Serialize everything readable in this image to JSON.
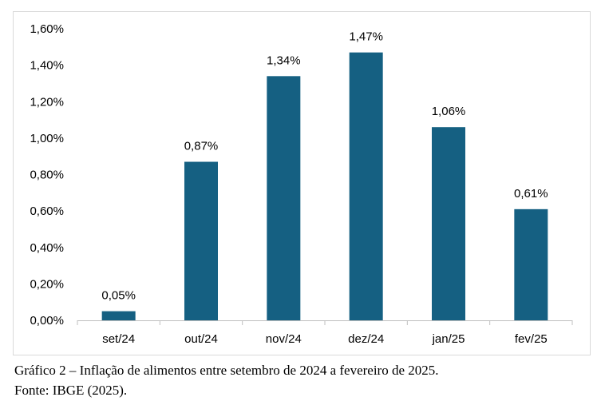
{
  "chart_data": {
    "type": "bar",
    "categories": [
      "set/24",
      "out/24",
      "nov/24",
      "dez/24",
      "jan/25",
      "fev/25"
    ],
    "values": [
      0.05,
      0.87,
      1.34,
      1.47,
      1.06,
      0.61
    ],
    "data_labels": [
      "0,05%",
      "0,87%",
      "1,34%",
      "1,47%",
      "1,06%",
      "0,61%"
    ],
    "y_ticks": [
      0,
      0.2,
      0.4,
      0.6,
      0.8,
      1.0,
      1.2,
      1.4,
      1.6
    ],
    "y_tick_labels": [
      "0,00%",
      "0,20%",
      "0,40%",
      "0,60%",
      "0,80%",
      "1,00%",
      "1,20%",
      "1,40%",
      "1,60%"
    ],
    "ylim": [
      0,
      1.6
    ],
    "grid": false,
    "bar_color": "#156082"
  },
  "caption": {
    "title": "Gráfico 2 – Inflação de alimentos entre setembro de 2024 a fevereiro de 2025.",
    "source": "Fonte: IBGE (2025)."
  }
}
